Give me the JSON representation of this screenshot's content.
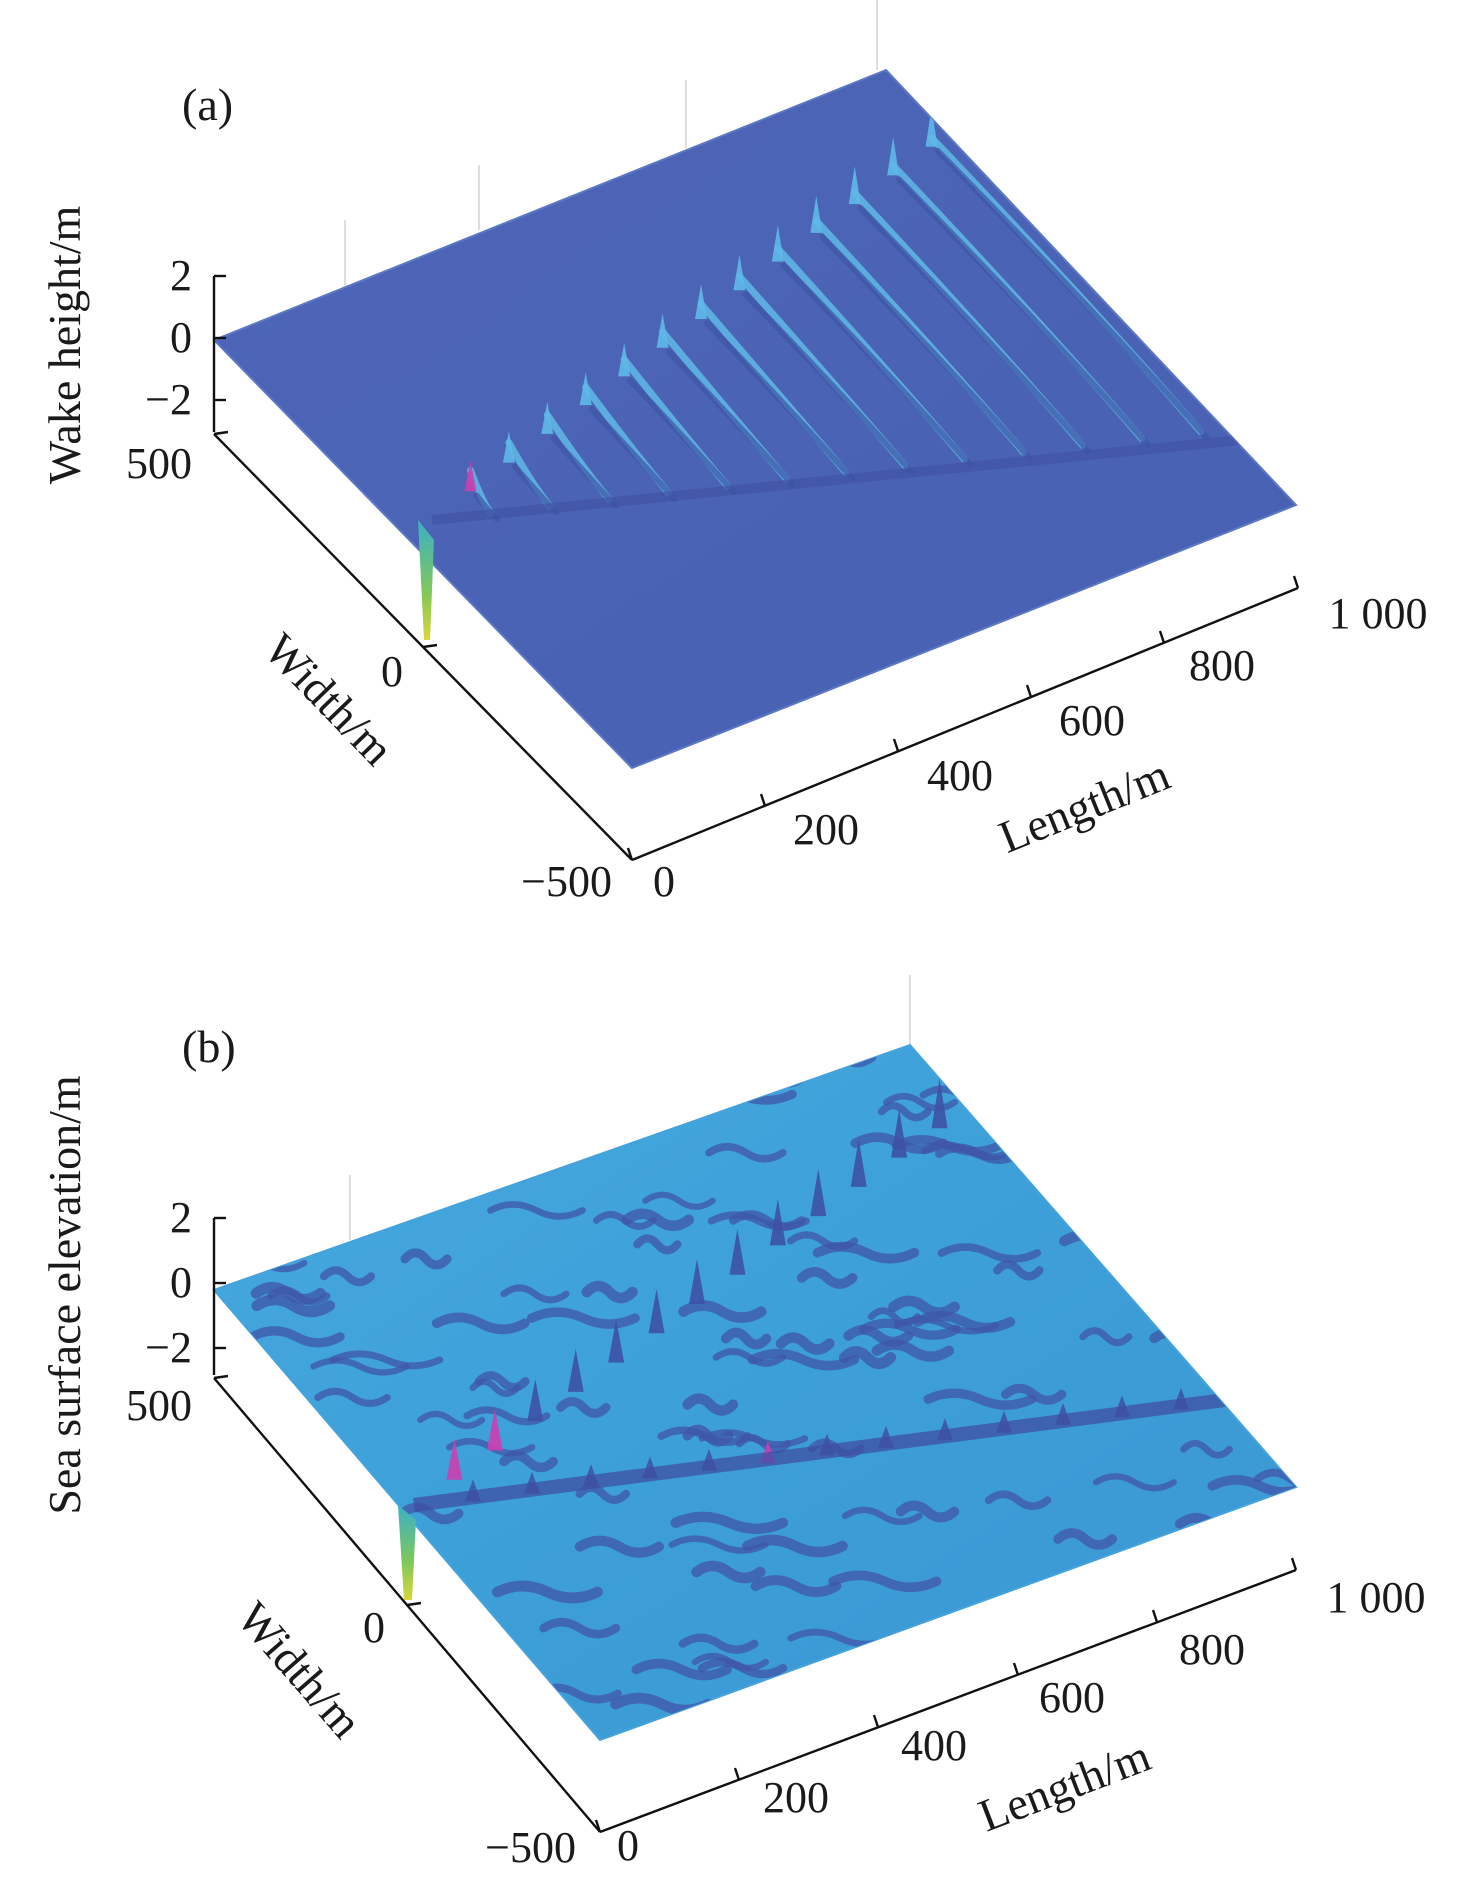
{
  "chart_data": [
    {
      "type": "surface",
      "panel_label": "(a)",
      "zlabel": "Wake height/m",
      "ylabel": "Width/m",
      "xlabel": "Length/m",
      "x_ticks": [
        "0",
        "200",
        "400",
        "600",
        "800",
        "1 000"
      ],
      "y_ticks": [
        "500",
        "0",
        "−500"
      ],
      "z_ticks": [
        "2",
        "0",
        "−2"
      ],
      "xlim": [
        0,
        1000
      ],
      "ylim": [
        -500,
        500
      ],
      "zlim": [
        -2,
        2
      ],
      "surface": "Kelvin ship wake on flat sea",
      "colors": {
        "surface": "#4a62b4",
        "crest": "#5fb8e8",
        "peak": "#cc3fb0",
        "trough": "#b8d433"
      }
    },
    {
      "type": "surface",
      "panel_label": "(b)",
      "zlabel": "Sea surface elevation/m",
      "ylabel": "Width/m",
      "xlabel": "Length/m",
      "x_ticks": [
        "0",
        "200",
        "400",
        "600",
        "800",
        "1 000"
      ],
      "y_ticks": [
        "500",
        "0",
        "−500"
      ],
      "z_ticks": [
        "2",
        "0",
        "−2"
      ],
      "xlim": [
        0,
        1000
      ],
      "ylim": [
        -500,
        500
      ],
      "zlim": [
        -2,
        2
      ],
      "surface": "Kelvin ship wake superimposed on random sea waves",
      "colors": {
        "surface": "#3fa6de",
        "crest": "#4055a8",
        "peak": "#cc3fb0",
        "trough": "#b8d433"
      }
    }
  ]
}
